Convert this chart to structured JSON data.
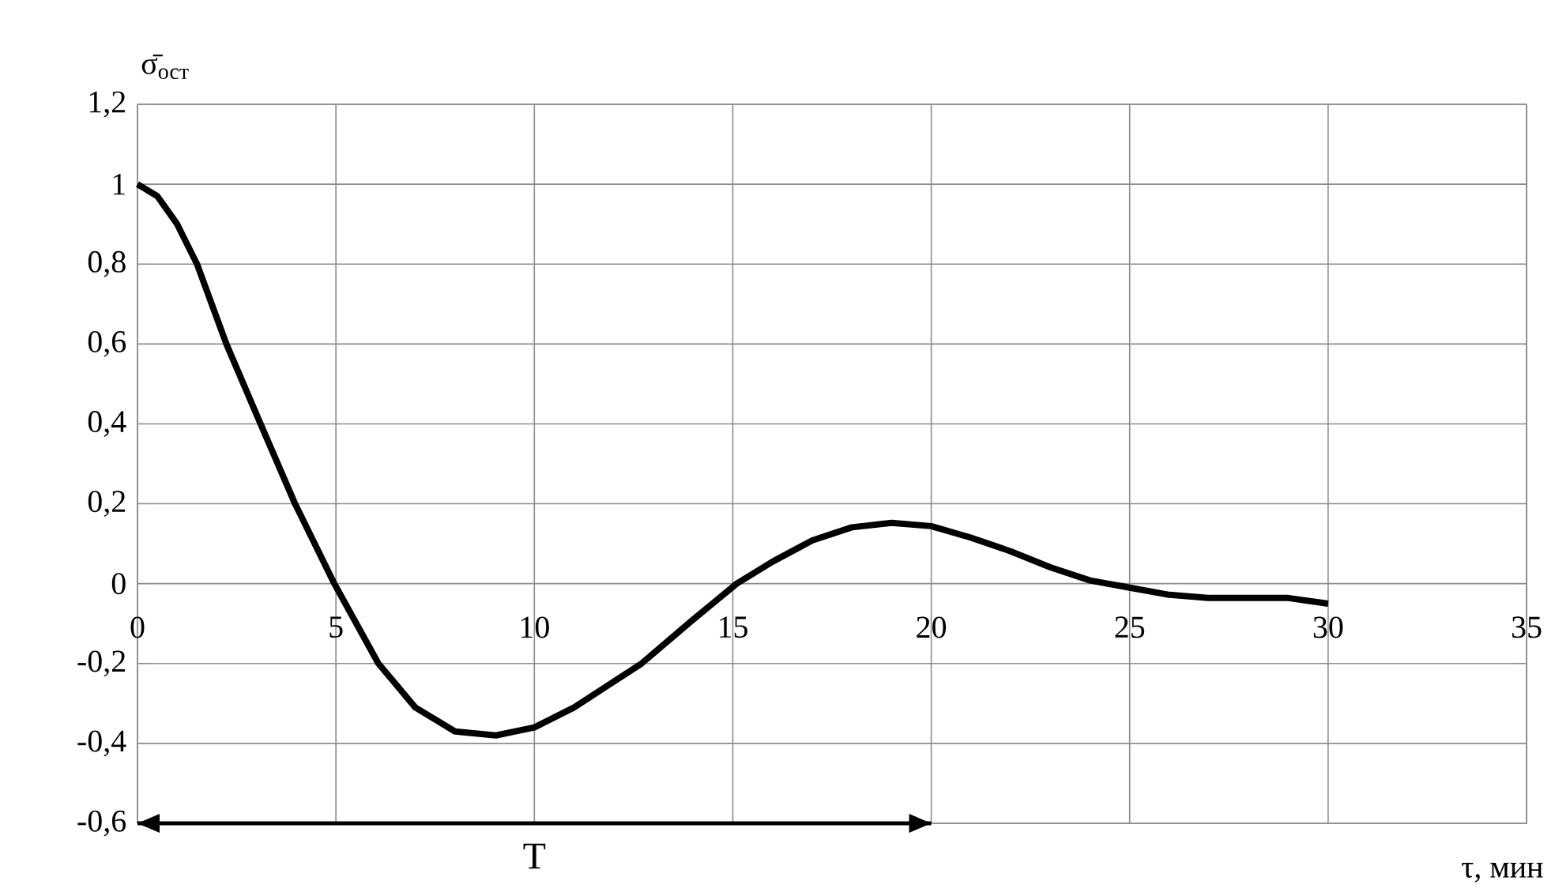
{
  "chart_data": {
    "type": "line",
    "xlabel": "τ, мин",
    "ylabel": "σ̄$_{ост}$",
    "xlim": [
      0,
      35
    ],
    "xticks": [
      0,
      5,
      10,
      15,
      20,
      25,
      30,
      35
    ],
    "ylim": [
      -0.6,
      1.2
    ],
    "yticks": [
      {
        "value": -0.6,
        "label": "-0,6"
      },
      {
        "value": -0.4,
        "label": "-0,4"
      },
      {
        "value": -0.2,
        "label": "-0,2"
      },
      0,
      {
        "value": 0.2,
        "label": "0,2"
      },
      {
        "value": 0.4,
        "label": "0,4"
      },
      {
        "value": 0.6,
        "label": "0,6"
      },
      {
        "value": 0.8,
        "label": "0,8"
      },
      1,
      {
        "value": 1.2,
        "label": "1,2"
      }
    ],
    "grid": true,
    "marker": "none",
    "line_style": "solid",
    "series": [
      {
        "color": "#000000",
        "x": [
          0,
          0.5,
          1,
          1.5,
          2.24,
          3.1,
          3.97,
          4.96,
          6.07,
          7,
          8,
          9.03,
          10,
          11,
          12.7,
          14,
          15.1,
          16,
          17,
          18,
          19,
          20,
          21,
          22,
          23,
          24,
          25,
          26,
          27,
          28,
          29,
          30
        ],
        "values": [
          1,
          0.97,
          0.9,
          0.8,
          0.6,
          0.4,
          0.2,
          0,
          -0.2,
          -0.31,
          -0.37,
          -0.38,
          -0.36,
          -0.31,
          -0.2,
          -0.09,
          0,
          0.055,
          0.108,
          0.141,
          0.152,
          0.144,
          0.115,
          0.081,
          0.041,
          0.008,
          -0.01,
          -0.028,
          -0.036,
          -0.036,
          -0.036,
          -0.05
        ]
      },
      {
        "name": "T",
        "color": "#000000",
        "x": [
          0,
          20
        ],
        "values": [
          -0.6,
          -0.6
        ]
      }
    ]
  }
}
